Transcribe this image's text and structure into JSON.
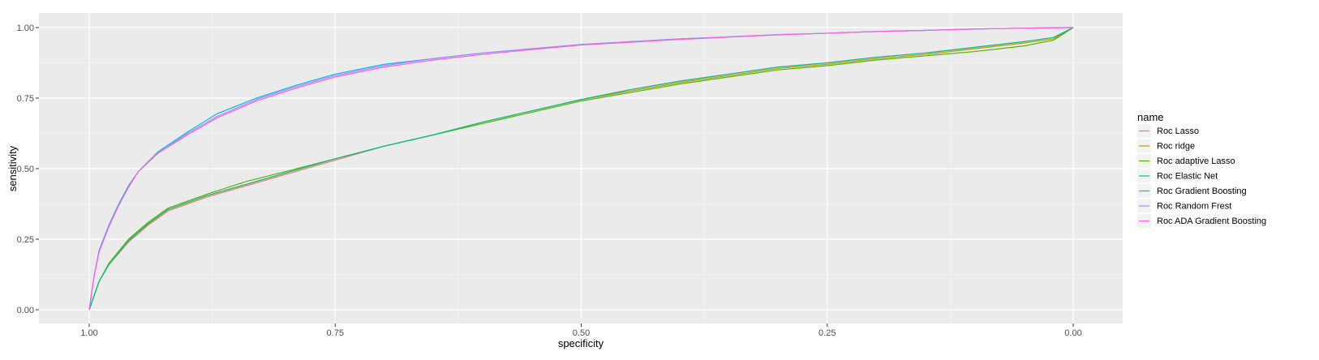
{
  "chart_data": {
    "type": "line",
    "xlabel": "specificity",
    "ylabel": "sensitivity",
    "x_reversed": true,
    "xlim": [
      1.0,
      0.0
    ],
    "ylim": [
      0.0,
      1.0
    ],
    "xticks": [
      1.0,
      0.75,
      0.5,
      0.25,
      0.0
    ],
    "xtick_labels": [
      "1.00",
      "0.75",
      "0.50",
      "0.25",
      "0.00"
    ],
    "yticks": [
      0.0,
      0.25,
      0.5,
      0.75,
      1.0
    ],
    "ytick_labels": [
      "0.00",
      "0.25",
      "0.50",
      "0.75",
      "1.00"
    ],
    "grid": true,
    "legend": {
      "title": "name",
      "position": "right"
    },
    "series": [
      {
        "name": "Roc Lasso",
        "color": "#f8766d",
        "x": [
          1.0,
          0.99,
          0.98,
          0.96,
          0.94,
          0.92,
          0.88,
          0.84,
          0.8,
          0.75,
          0.7,
          0.65,
          0.6,
          0.55,
          0.5,
          0.45,
          0.4,
          0.35,
          0.3,
          0.25,
          0.2,
          0.15,
          0.1,
          0.05,
          0.02,
          0.0
        ],
        "y": [
          0.0,
          0.1,
          0.16,
          0.24,
          0.3,
          0.35,
          0.4,
          0.44,
          0.48,
          0.53,
          0.58,
          0.62,
          0.665,
          0.705,
          0.745,
          0.78,
          0.81,
          0.835,
          0.86,
          0.875,
          0.895,
          0.91,
          0.93,
          0.95,
          0.965,
          1.0
        ]
      },
      {
        "name": "Roc ridge",
        "color": "#c49a00",
        "x": [
          1.0,
          0.99,
          0.98,
          0.96,
          0.94,
          0.92,
          0.88,
          0.84,
          0.8,
          0.75,
          0.7,
          0.65,
          0.6,
          0.55,
          0.5,
          0.45,
          0.4,
          0.35,
          0.3,
          0.25,
          0.2,
          0.15,
          0.1,
          0.05,
          0.02,
          0.0
        ],
        "y": [
          0.0,
          0.1,
          0.16,
          0.245,
          0.305,
          0.355,
          0.405,
          0.445,
          0.485,
          0.535,
          0.58,
          0.62,
          0.665,
          0.705,
          0.745,
          0.775,
          0.805,
          0.83,
          0.855,
          0.87,
          0.89,
          0.905,
          0.925,
          0.945,
          0.96,
          1.0
        ]
      },
      {
        "name": "Roc adaptive Lasso",
        "color": "#53b400",
        "x": [
          1.0,
          0.99,
          0.98,
          0.96,
          0.94,
          0.92,
          0.88,
          0.84,
          0.8,
          0.75,
          0.7,
          0.65,
          0.6,
          0.55,
          0.5,
          0.45,
          0.4,
          0.35,
          0.3,
          0.25,
          0.2,
          0.15,
          0.1,
          0.05,
          0.02,
          0.0
        ],
        "y": [
          0.0,
          0.1,
          0.165,
          0.25,
          0.31,
          0.36,
          0.41,
          0.455,
          0.49,
          0.535,
          0.58,
          0.62,
          0.66,
          0.7,
          0.74,
          0.77,
          0.8,
          0.825,
          0.85,
          0.865,
          0.885,
          0.9,
          0.915,
          0.935,
          0.955,
          1.0
        ]
      },
      {
        "name": "Roc Elastic Net",
        "color": "#00c094",
        "x": [
          1.0,
          0.99,
          0.98,
          0.96,
          0.94,
          0.92,
          0.88,
          0.84,
          0.8,
          0.75,
          0.7,
          0.65,
          0.6,
          0.55,
          0.5,
          0.45,
          0.4,
          0.35,
          0.3,
          0.25,
          0.2,
          0.15,
          0.1,
          0.05,
          0.02,
          0.0
        ],
        "y": [
          0.0,
          0.1,
          0.16,
          0.245,
          0.305,
          0.355,
          0.405,
          0.445,
          0.485,
          0.535,
          0.58,
          0.62,
          0.665,
          0.705,
          0.745,
          0.78,
          0.81,
          0.835,
          0.86,
          0.875,
          0.895,
          0.91,
          0.93,
          0.95,
          0.965,
          1.0
        ]
      },
      {
        "name": "Roc Gradient Boosting",
        "color": "#00b6eb",
        "x": [
          1.0,
          0.995,
          0.99,
          0.98,
          0.97,
          0.96,
          0.95,
          0.93,
          0.9,
          0.87,
          0.83,
          0.79,
          0.75,
          0.7,
          0.65,
          0.6,
          0.55,
          0.5,
          0.45,
          0.4,
          0.35,
          0.3,
          0.25,
          0.2,
          0.15,
          0.1,
          0.05,
          0.0
        ],
        "y": [
          0.0,
          0.12,
          0.21,
          0.3,
          0.375,
          0.44,
          0.49,
          0.56,
          0.63,
          0.695,
          0.75,
          0.795,
          0.835,
          0.87,
          0.89,
          0.91,
          0.925,
          0.94,
          0.95,
          0.96,
          0.967,
          0.975,
          0.98,
          0.986,
          0.99,
          0.995,
          0.998,
          1.0
        ]
      },
      {
        "name": "Roc Random Frest",
        "color": "#a58aff",
        "x": [
          1.0,
          0.995,
          0.99,
          0.98,
          0.97,
          0.96,
          0.95,
          0.93,
          0.9,
          0.87,
          0.83,
          0.79,
          0.75,
          0.7,
          0.65,
          0.6,
          0.55,
          0.5,
          0.45,
          0.4,
          0.35,
          0.3,
          0.25,
          0.2,
          0.15,
          0.1,
          0.05,
          0.0
        ],
        "y": [
          0.0,
          0.12,
          0.205,
          0.295,
          0.37,
          0.435,
          0.49,
          0.555,
          0.625,
          0.685,
          0.745,
          0.79,
          0.83,
          0.865,
          0.89,
          0.91,
          0.925,
          0.94,
          0.95,
          0.96,
          0.967,
          0.975,
          0.98,
          0.986,
          0.99,
          0.995,
          0.998,
          1.0
        ]
      },
      {
        "name": "Roc ADA Gradient Boosting",
        "color": "#fb61d7",
        "x": [
          1.0,
          0.995,
          0.99,
          0.98,
          0.97,
          0.96,
          0.95,
          0.93,
          0.9,
          0.87,
          0.83,
          0.79,
          0.75,
          0.7,
          0.65,
          0.6,
          0.55,
          0.5,
          0.45,
          0.4,
          0.35,
          0.3,
          0.25,
          0.2,
          0.15,
          0.1,
          0.05,
          0.0
        ],
        "y": [
          0.0,
          0.12,
          0.205,
          0.295,
          0.37,
          0.435,
          0.49,
          0.555,
          0.62,
          0.68,
          0.74,
          0.785,
          0.825,
          0.86,
          0.885,
          0.905,
          0.922,
          0.938,
          0.948,
          0.958,
          0.966,
          0.974,
          0.98,
          0.986,
          0.99,
          0.995,
          0.998,
          1.0
        ]
      }
    ]
  }
}
